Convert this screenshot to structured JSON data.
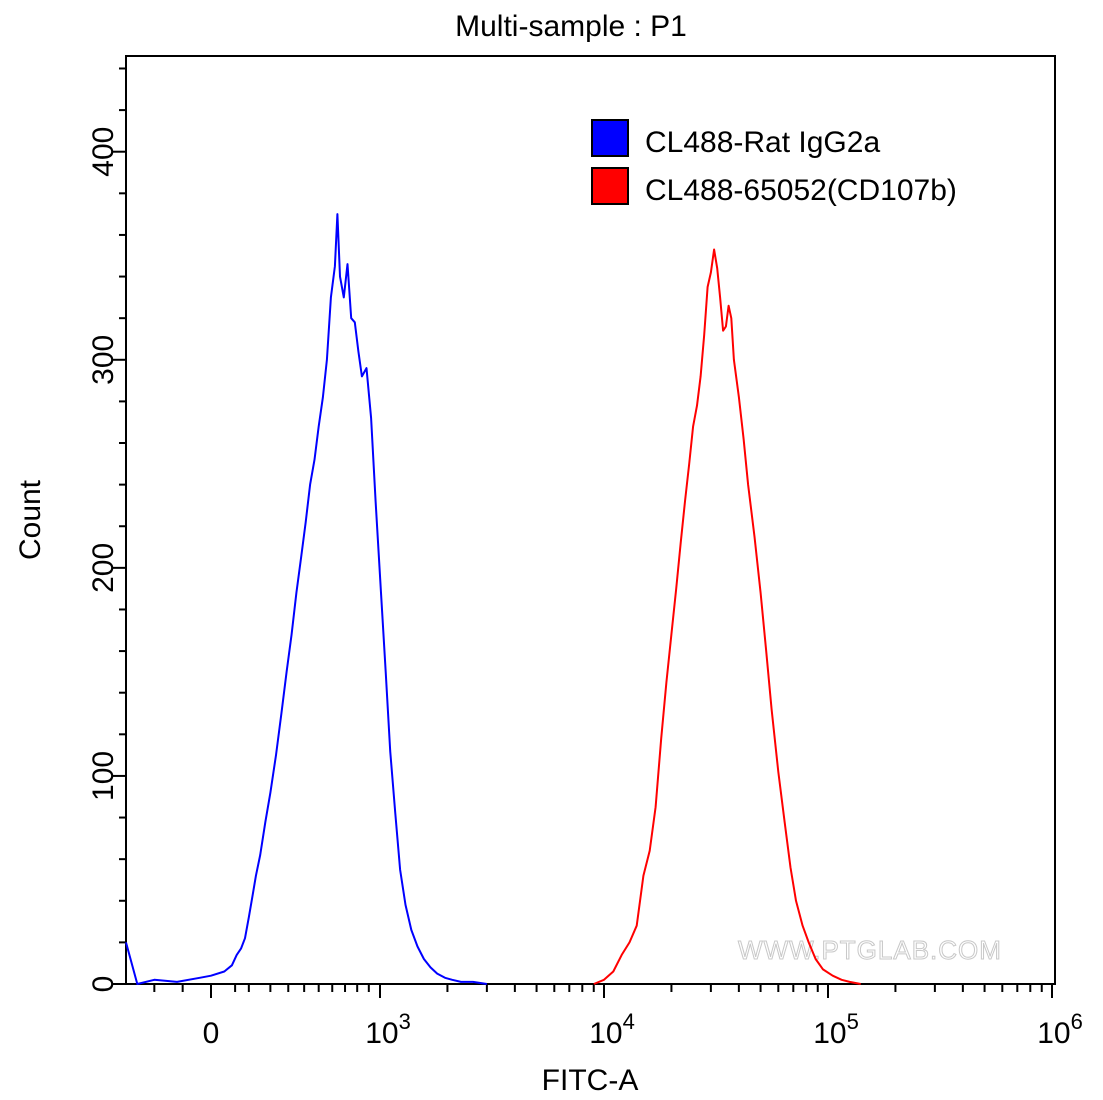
{
  "chart_data": {
    "type": "line",
    "title": "Multi-sample : P1",
    "xlabel": "FITC-A",
    "ylabel": "Count",
    "x_scale": "biexponential",
    "xlim": [
      -150,
      1000000
    ],
    "ylim": [
      0,
      446
    ],
    "x_ticks": [
      {
        "value": 0,
        "label": "0",
        "exp": ""
      },
      {
        "value": 1000,
        "label": "10",
        "exp": "3"
      },
      {
        "value": 10000,
        "label": "10",
        "exp": "4"
      },
      {
        "value": 100000,
        "label": "10",
        "exp": "5"
      },
      {
        "value": 1000000,
        "label": "10",
        "exp": "6"
      }
    ],
    "y_ticks": [
      0,
      100,
      200,
      300,
      400
    ],
    "legend_position": "top-right",
    "watermark": "WWW.PTGLAB.COM",
    "series": [
      {
        "name": "CL488-Rat IgG2a",
        "color": "#0000ff",
        "points": [
          [
            -150,
            20
          ],
          [
            -130,
            0
          ],
          [
            -100,
            2
          ],
          [
            -60,
            1
          ],
          [
            -20,
            3
          ],
          [
            0,
            4
          ],
          [
            20,
            6
          ],
          [
            40,
            9
          ],
          [
            55,
            14
          ],
          [
            70,
            17
          ],
          [
            85,
            22
          ],
          [
            100,
            32
          ],
          [
            115,
            42
          ],
          [
            130,
            52
          ],
          [
            150,
            62
          ],
          [
            175,
            78
          ],
          [
            200,
            92
          ],
          [
            230,
            110
          ],
          [
            260,
            130
          ],
          [
            290,
            150
          ],
          [
            320,
            168
          ],
          [
            350,
            188
          ],
          [
            380,
            205
          ],
          [
            410,
            222
          ],
          [
            440,
            240
          ],
          [
            470,
            252
          ],
          [
            500,
            268
          ],
          [
            530,
            282
          ],
          [
            560,
            300
          ],
          [
            590,
            330
          ],
          [
            620,
            345
          ],
          [
            640,
            370
          ],
          [
            660,
            340
          ],
          [
            690,
            330
          ],
          [
            720,
            346
          ],
          [
            750,
            320
          ],
          [
            780,
            318
          ],
          [
            810,
            304
          ],
          [
            840,
            292
          ],
          [
            880,
            296
          ],
          [
            920,
            272
          ],
          [
            960,
            232
          ],
          [
            1010,
            188
          ],
          [
            1060,
            150
          ],
          [
            1110,
            112
          ],
          [
            1170,
            82
          ],
          [
            1230,
            55
          ],
          [
            1300,
            38
          ],
          [
            1380,
            26
          ],
          [
            1470,
            18
          ],
          [
            1570,
            12
          ],
          [
            1680,
            8
          ],
          [
            1800,
            5
          ],
          [
            1950,
            3
          ],
          [
            2100,
            2
          ],
          [
            2300,
            1
          ],
          [
            2600,
            1
          ],
          [
            3000,
            0
          ]
        ]
      },
      {
        "name": "CL488-65052(CD107b)",
        "color": "#ff0000",
        "points": [
          [
            9000,
            0
          ],
          [
            10000,
            2
          ],
          [
            11000,
            6
          ],
          [
            12000,
            14
          ],
          [
            13000,
            20
          ],
          [
            14000,
            28
          ],
          [
            15000,
            52
          ],
          [
            16000,
            64
          ],
          [
            17000,
            85
          ],
          [
            18000,
            118
          ],
          [
            19000,
            145
          ],
          [
            20000,
            168
          ],
          [
            21000,
            190
          ],
          [
            22000,
            212
          ],
          [
            23000,
            232
          ],
          [
            24000,
            250
          ],
          [
            25000,
            268
          ],
          [
            26000,
            278
          ],
          [
            27000,
            292
          ],
          [
            28000,
            312
          ],
          [
            29000,
            335
          ],
          [
            30000,
            342
          ],
          [
            31000,
            353
          ],
          [
            32000,
            344
          ],
          [
            33000,
            330
          ],
          [
            34000,
            314
          ],
          [
            35000,
            316
          ],
          [
            36000,
            326
          ],
          [
            37000,
            320
          ],
          [
            38000,
            300
          ],
          [
            40000,
            282
          ],
          [
            42000,
            262
          ],
          [
            44000,
            240
          ],
          [
            47000,
            215
          ],
          [
            50000,
            188
          ],
          [
            53000,
            160
          ],
          [
            56000,
            132
          ],
          [
            60000,
            102
          ],
          [
            64000,
            78
          ],
          [
            68000,
            56
          ],
          [
            72000,
            40
          ],
          [
            77000,
            28
          ],
          [
            82000,
            20
          ],
          [
            88000,
            12
          ],
          [
            95000,
            7
          ],
          [
            105000,
            4
          ],
          [
            115000,
            2
          ],
          [
            125000,
            1
          ],
          [
            140000,
            0
          ]
        ]
      }
    ]
  }
}
